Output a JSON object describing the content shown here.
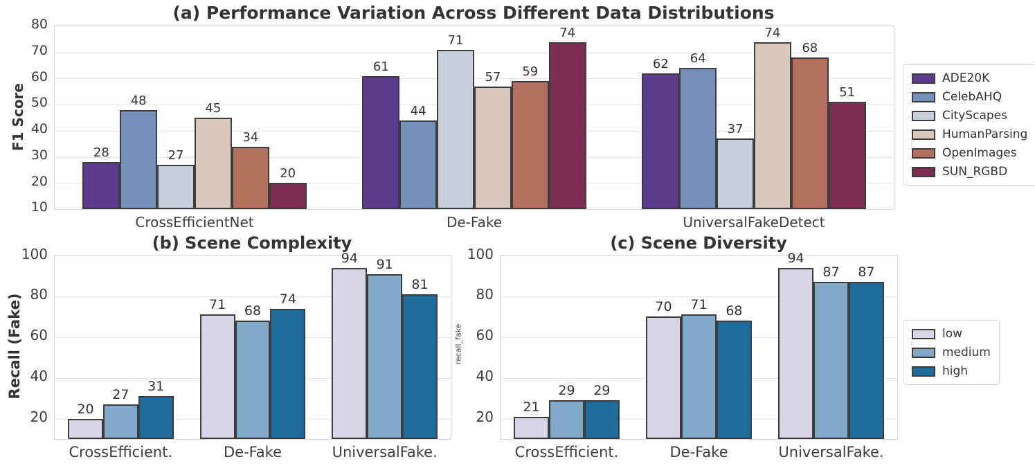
{
  "figure_title": "(a) Performance Variation Across Different Data Distributions",
  "colors": {
    "bar_edge": "#3d3d3d",
    "gridline": "#e6e6ec",
    "spine": "#d4d4dc",
    "text": "#333333"
  },
  "chart_data": [
    {
      "id": "a",
      "type": "bar",
      "title": "(a) Performance Variation Across Different Data Distributions",
      "xlabel": "",
      "ylabel": "F1 Score",
      "categories": [
        "CrossEfficientNet",
        "De-Fake",
        "UniversalFakeDetect"
      ],
      "series": [
        {
          "name": "ADE20K",
          "color": "#5c3c8f",
          "values": [
            28,
            61,
            62
          ]
        },
        {
          "name": "CelebAHQ",
          "color": "#7590ba",
          "values": [
            48,
            44,
            64
          ]
        },
        {
          "name": "CityScapes",
          "color": "#c6cfda",
          "values": [
            27,
            71,
            37
          ]
        },
        {
          "name": "HumanParsing",
          "color": "#d9c8be",
          "values": [
            45,
            57,
            74
          ]
        },
        {
          "name": "OpenImages",
          "color": "#b3705f",
          "values": [
            34,
            59,
            68
          ]
        },
        {
          "name": "SUN_RGBD",
          "color": "#7d2e52",
          "values": [
            20,
            74,
            51
          ]
        }
      ],
      "ylim": [
        10,
        80
      ],
      "yticks": [
        10,
        20,
        30,
        40,
        50,
        60,
        70,
        80
      ],
      "grid": true,
      "legend_position": "right of plot",
      "bar_labels": true
    },
    {
      "id": "b",
      "type": "bar",
      "title": "(b) Scene Complexity",
      "xlabel": "",
      "ylabel": "Recall (Fake)",
      "categories": [
        "CrossEfficient.",
        "De-Fake",
        "UniversalFake."
      ],
      "series": [
        {
          "name": "low",
          "color": "#d7d4e6",
          "values": [
            20,
            71,
            94
          ]
        },
        {
          "name": "medium",
          "color": "#81a9c7",
          "values": [
            27,
            68,
            91
          ]
        },
        {
          "name": "high",
          "color": "#1f6b9c",
          "values": [
            31,
            74,
            81
          ]
        }
      ],
      "ylim": [
        10,
        100
      ],
      "yticks": [
        20,
        40,
        60,
        80,
        100
      ],
      "grid": true,
      "legend_position": "none",
      "bar_labels": true
    },
    {
      "id": "c",
      "type": "bar",
      "title": "(c) Scene Diversity",
      "xlabel": "",
      "ylabel": "recall_fake",
      "categories": [
        "CrossEfficient.",
        "De-Fake",
        "UniversalFake."
      ],
      "series": [
        {
          "name": "low",
          "color": "#d7d4e6",
          "values": [
            21,
            70,
            94
          ]
        },
        {
          "name": "medium",
          "color": "#81a9c7",
          "values": [
            29,
            71,
            87
          ]
        },
        {
          "name": "high",
          "color": "#1f6b9c",
          "values": [
            29,
            68,
            87
          ]
        }
      ],
      "ylim": [
        10,
        100
      ],
      "yticks": [
        20,
        40,
        60,
        80,
        100
      ],
      "grid": true,
      "legend_position": "right of plot",
      "bar_labels": true
    }
  ]
}
